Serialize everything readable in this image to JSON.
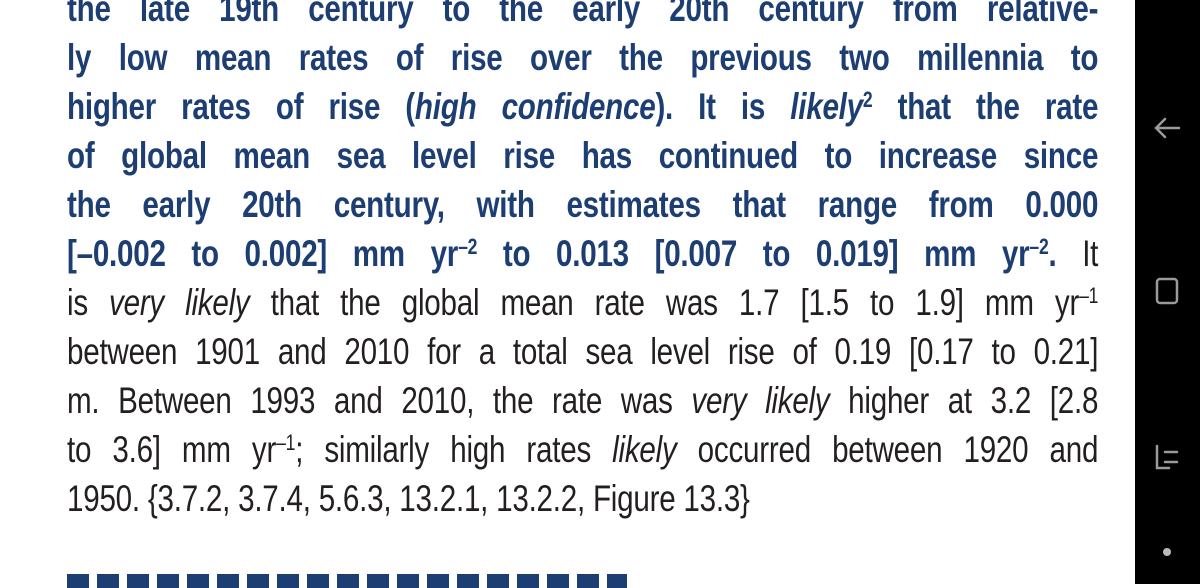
{
  "lines": [
    [
      "the late 19th century to the early 20th century from relative-"
    ],
    [
      "ly low mean rates of rise over the previous two millennia to"
    ],
    [
      "higher rates of rise (",
      "high confidence",
      "). It is ",
      "likely",
      "2",
      " that the rate"
    ],
    [
      "of global mean sea level rise has continued to increase since"
    ],
    [
      "the early 20th century, with estimates that range from 0.000"
    ],
    [
      "[–0.002 to 0.002] mm yr",
      "–2",
      " to 0.013 [0.007 to 0.019] mm yr",
      "–2",
      ". ",
      "It"
    ],
    [
      "is ",
      "very likely",
      " that the global mean rate was 1.7 [1.5 to 1.9] mm yr",
      "–1"
    ],
    [
      "between 1901 and 2010 for a total sea level rise of 0.19 [0.17 to 0.21]"
    ],
    [
      "m. Between 1993 and 2010, the rate was ",
      "very likely",
      " higher at 3.2 [2.8"
    ],
    [
      "to 3.6] mm yr",
      "–1",
      "; similarly high rates ",
      "likely",
      " occurred between 1920 and"
    ],
    [
      "1950.  {3.7.2, 3.7.4, 5.6.3, 13.2.1, 13.2.2, Figure 13.3}"
    ]
  ]
}
